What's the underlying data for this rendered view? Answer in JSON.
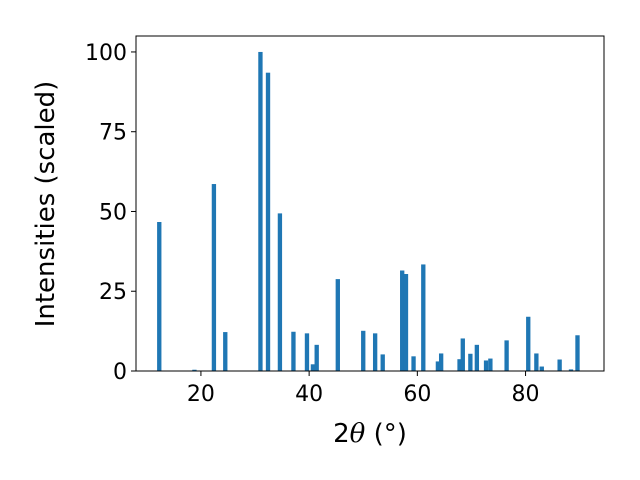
{
  "chart_data": {
    "type": "bar",
    "title": "",
    "xlabel": {
      "prefix": "2",
      "theta": "θ",
      "unit": " (°)"
    },
    "ylabel": "Intensities (scaled)",
    "xlim": [
      8,
      94.5
    ],
    "ylim": [
      0,
      105
    ],
    "xticks": [
      20,
      40,
      60,
      80
    ],
    "yticks": [
      0,
      25,
      50,
      75,
      100
    ],
    "grid": false,
    "bar_color": "#1f77b4",
    "bar_width": 0.8,
    "x": [
      12.3,
      18.8,
      22.4,
      24.5,
      31.0,
      32.4,
      34.6,
      37.1,
      39.6,
      40.7,
      41.4,
      45.3,
      50.0,
      52.2,
      53.6,
      57.2,
      57.9,
      59.3,
      61.1,
      63.8,
      64.4,
      67.8,
      68.4,
      69.8,
      71.0,
      72.7,
      73.5,
      76.5,
      80.5,
      82.0,
      83.0,
      86.3,
      88.4,
      89.6
    ],
    "values": [
      46.7,
      0.4,
      58.6,
      12.2,
      100.0,
      93.5,
      49.4,
      12.3,
      11.8,
      2.1,
      8.2,
      28.8,
      12.6,
      11.8,
      5.2,
      31.5,
      30.4,
      4.6,
      33.4,
      3.0,
      5.5,
      3.7,
      10.2,
      5.4,
      8.2,
      3.3,
      3.9,
      9.6,
      17.0,
      5.5,
      1.4,
      3.6,
      0.5,
      11.2
    ]
  }
}
